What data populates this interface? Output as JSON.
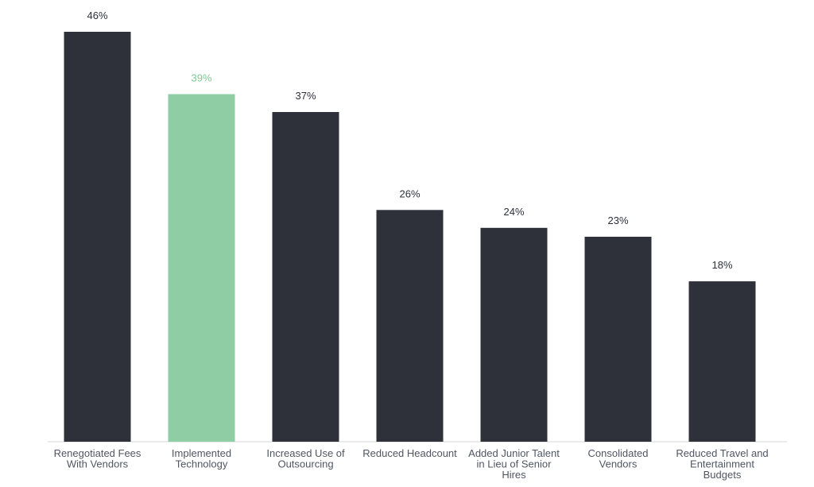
{
  "chart_data": {
    "type": "bar",
    "title": "",
    "xlabel": "",
    "ylabel": "",
    "ylim": [
      0,
      46
    ],
    "grid": false,
    "legend": "none",
    "categories": [
      [
        "Renegotiated Fees",
        "With Vendors"
      ],
      [
        "Implemented",
        "Technology"
      ],
      [
        "Increased Use of",
        "Outsourcing"
      ],
      [
        "Reduced Headcount"
      ],
      [
        "Added Junior Talent",
        "in Lieu of Senior",
        "Hires"
      ],
      [
        "Consolidated",
        "Vendors"
      ],
      [
        "Reduced Travel and",
        "Entertainment",
        "Budgets"
      ]
    ],
    "values": [
      46,
      39,
      37,
      26,
      24,
      23,
      18
    ],
    "value_labels": [
      "46%",
      "39%",
      "37%",
      "26%",
      "24%",
      "23%",
      "18%"
    ],
    "highlight_index": 1,
    "colors": {
      "bar": "#2e303a",
      "highlight_bar": "#8fcea4",
      "value_text": "#2e303a",
      "highlight_value_text": "#7ccc93",
      "category_text": "#505663",
      "axis": "#d5d5d5"
    }
  }
}
